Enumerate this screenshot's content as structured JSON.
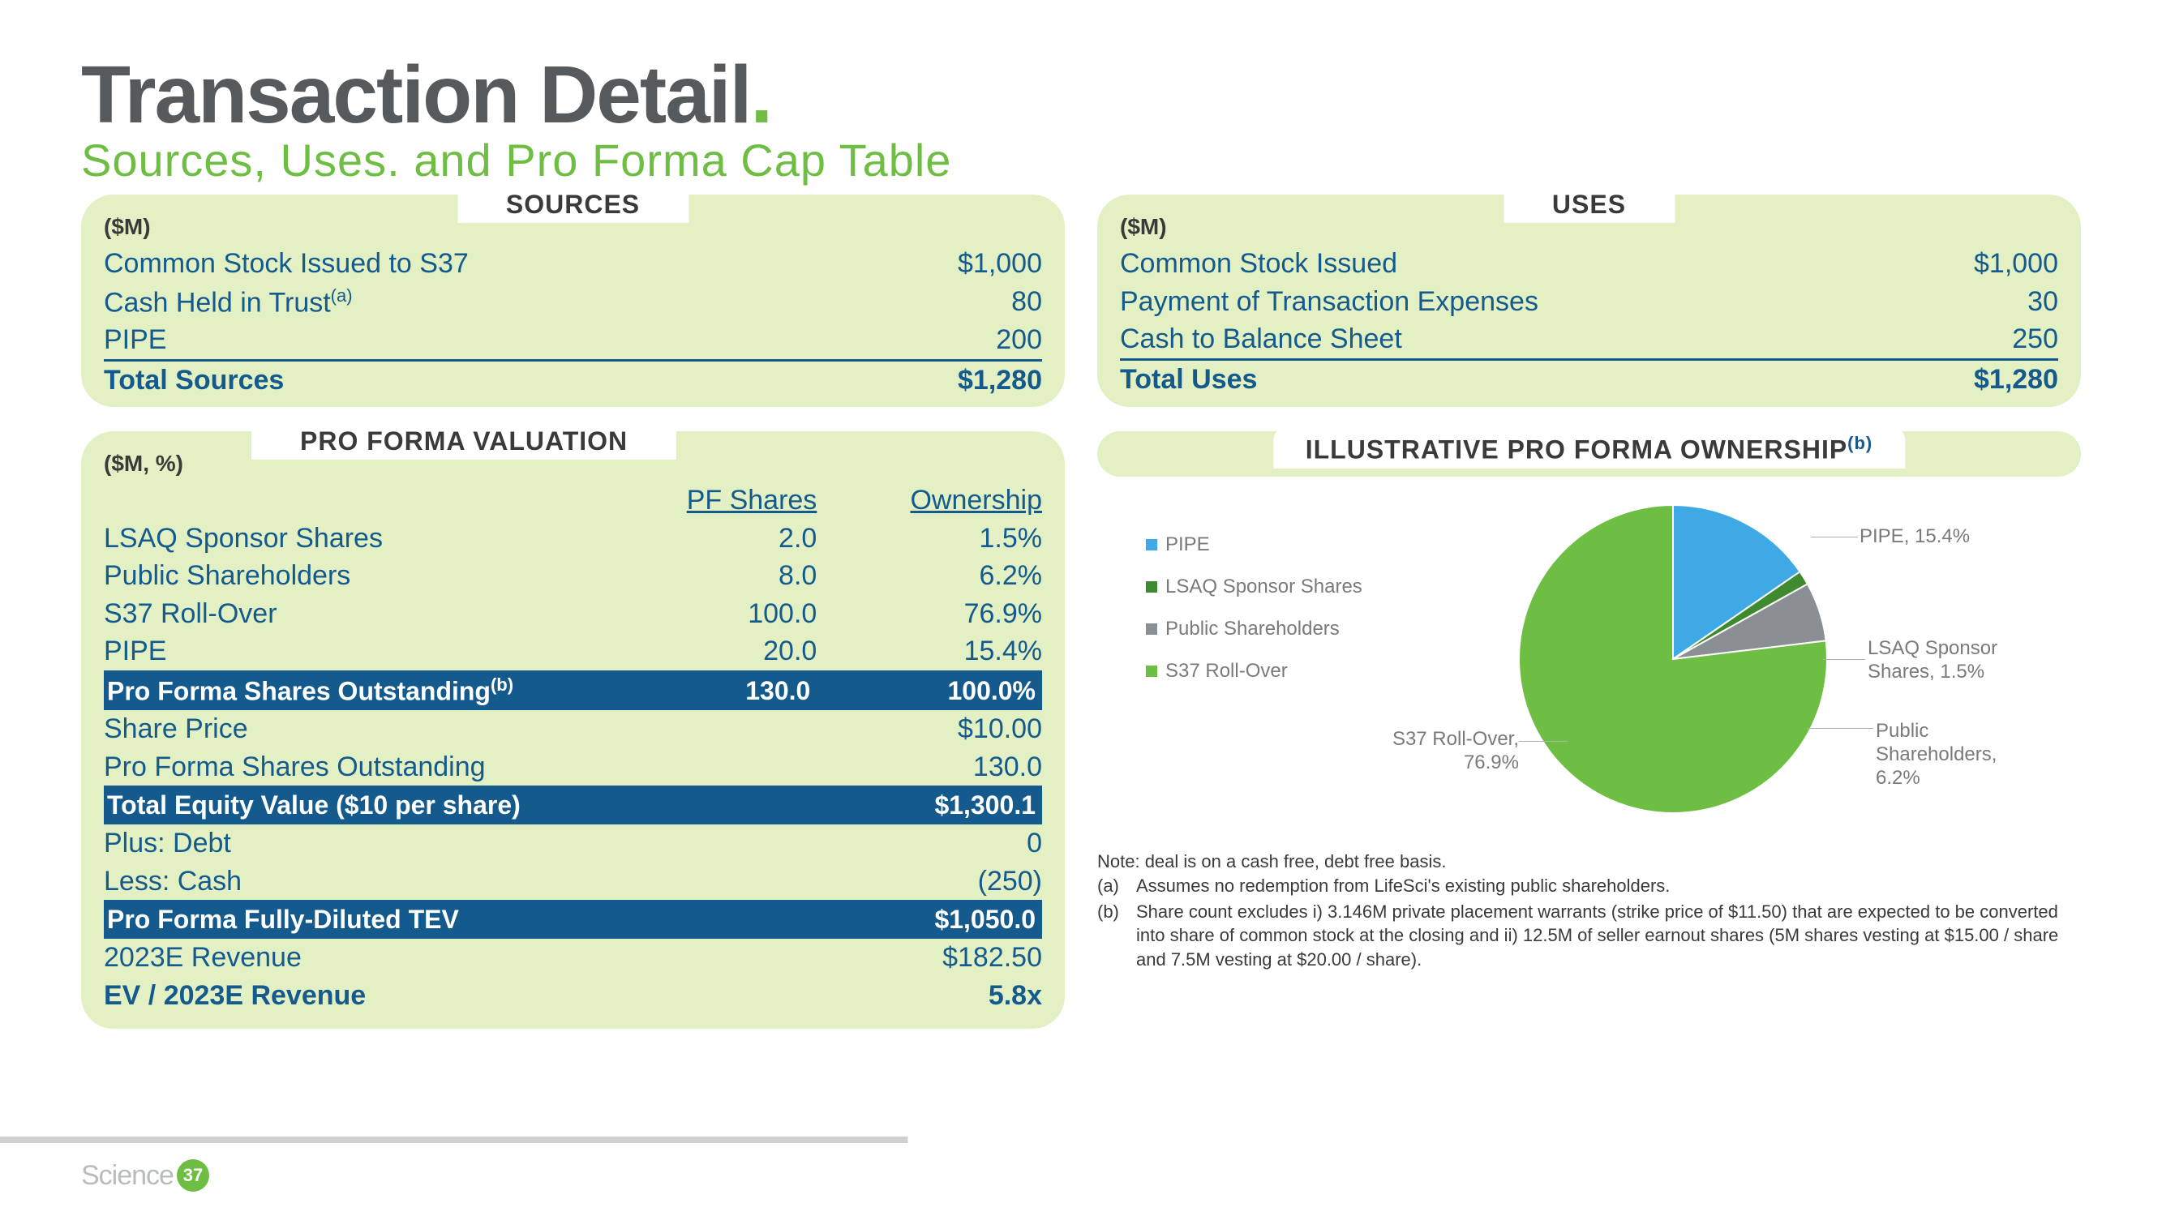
{
  "title": "Transaction Detail",
  "subtitle": "Sources, Uses. and Pro Forma Cap Table",
  "colors": {
    "brand_green": "#6fbe44",
    "panel_bg": "#e2f0c4",
    "navy": "#145a8d",
    "text_grey": "#565a5c",
    "pie_blue": "#3fa9e6",
    "pie_green": "#6fbe44",
    "pie_darkgreen": "#3f8a2f",
    "pie_grey": "#8a8f94"
  },
  "sources": {
    "tab": "SOURCES",
    "unit": "($M)",
    "rows": [
      {
        "label": "Common Stock Issued to S37",
        "value": "$1,000"
      },
      {
        "label": "Cash Held in Trust",
        "sup": "(a)",
        "value": "80"
      },
      {
        "label": "PIPE",
        "value": "200"
      }
    ],
    "total": {
      "label": "Total Sources",
      "value": "$1,280"
    }
  },
  "uses": {
    "tab": "USES",
    "unit": "($M)",
    "rows": [
      {
        "label": "Common Stock Issued",
        "value": "$1,000"
      },
      {
        "label": "Payment of Transaction Expenses",
        "value": "30"
      },
      {
        "label": "Cash to Balance Sheet",
        "value": "250"
      }
    ],
    "total": {
      "label": "Total Uses",
      "value": "$1,280"
    }
  },
  "valuation": {
    "tab": "PRO FORMA VALUATION",
    "unit": "($M, %)",
    "headers": {
      "col1": "PF Shares",
      "col2": "Ownership"
    },
    "block1": [
      {
        "label": "LSAQ Sponsor Shares",
        "shares": "2.0",
        "own": "1.5%"
      },
      {
        "label": "Public Shareholders",
        "shares": "8.0",
        "own": "6.2%"
      },
      {
        "label": "S37 Roll-Over",
        "shares": "100.0",
        "own": "76.9%"
      },
      {
        "label": "PIPE",
        "shares": "20.0",
        "own": "15.4%"
      }
    ],
    "bar1": {
      "label": "Pro Forma Shares Outstanding",
      "sup": "(b)",
      "shares": "130.0",
      "own": "100.0%"
    },
    "block2": [
      {
        "label": "Share Price",
        "value": "$10.00"
      },
      {
        "label": "Pro Forma Shares Outstanding",
        "value": "130.0"
      }
    ],
    "bar2": {
      "label": "Total Equity Value ($10 per share)",
      "value": "$1,300.1"
    },
    "block3": [
      {
        "label": "Plus: Debt",
        "value": "0"
      },
      {
        "label": "Less: Cash",
        "value": "(250)"
      }
    ],
    "bar3": {
      "label": "Pro Forma Fully-Diluted TEV",
      "value": "$1,050.0"
    },
    "block4": [
      {
        "label": "2023E Revenue",
        "value": "$182.50"
      }
    ],
    "final": {
      "label": "EV / 2023E Revenue",
      "value": "5.8x"
    }
  },
  "ownership": {
    "tab": "ILLUSTRATIVE PRO FORMA OWNERSHIP",
    "sup": "(b)",
    "legend": [
      {
        "label": "PIPE",
        "color": "#3fa9e6"
      },
      {
        "label": "LSAQ Sponsor Shares",
        "color": "#3f8a2f"
      },
      {
        "label": "Public Shareholders",
        "color": "#8a8f94"
      },
      {
        "label": "S37 Roll-Over",
        "color": "#6fbe44"
      }
    ],
    "pie": {
      "type": "pie",
      "radius": 190,
      "slices": [
        {
          "name": "PIPE",
          "pct": 15.4,
          "color": "#3fa9e6",
          "label": "PIPE, 15.4%"
        },
        {
          "name": "LSAQ Sponsor Shares",
          "pct": 1.5,
          "color": "#3f8a2f",
          "label": "LSAQ Sponsor Shares, 1.5%"
        },
        {
          "name": "Public Shareholders",
          "pct": 6.2,
          "color": "#8a8f94",
          "label": "Public Shareholders, 6.2%"
        },
        {
          "name": "S37 Roll-Over",
          "pct": 76.9,
          "color": "#6fbe44",
          "label": "S37 Roll-Over, 76.9%"
        }
      ]
    },
    "external_labels": {
      "pipe": "PIPE, 15.4%",
      "sponsor_l1": "LSAQ Sponsor",
      "sponsor_l2": "Shares, 1.5%",
      "public_l1": "Public",
      "public_l2": "Shareholders,",
      "public_l3": "6.2%",
      "rollover_l1": "S37 Roll-Over,",
      "rollover_l2": "76.9%"
    }
  },
  "notes": {
    "intro": "Note: deal is on a cash free, debt free basis.",
    "a": "Assumes no redemption from LifeSci's existing public shareholders.",
    "b": "Share count excludes i) 3.146M private placement warrants (strike price of $11.50) that are expected to be converted into share of common stock at the closing and ii) 12.5M of seller earnout shares (5M shares vesting at $15.00 / share and 7.5M vesting at $20.00 / share)."
  },
  "footer": {
    "brand": "Science",
    "badge": "37"
  }
}
